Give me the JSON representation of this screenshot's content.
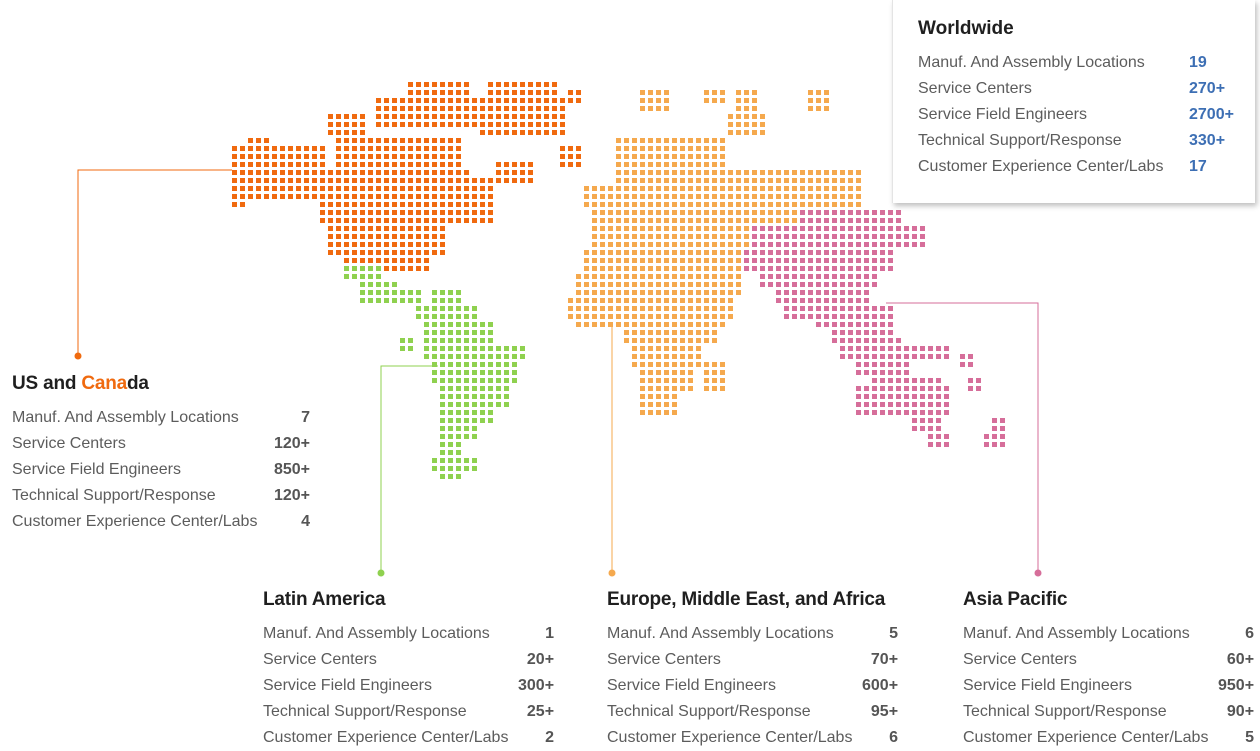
{
  "colors": {
    "us_canada": "#f06a0f",
    "latin_america": "#8fd14f",
    "emea": "#f5a94e",
    "asia_pacific": "#d66e9a",
    "worldwide_values": "#3d6fb4"
  },
  "worldwide": {
    "title": "Worldwide",
    "rows": [
      {
        "label": "Manuf. And Assembly Locations",
        "value": "19"
      },
      {
        "label": "Service Centers",
        "value": "270+"
      },
      {
        "label": "Service Field Engineers",
        "value": "2700+"
      },
      {
        "label": "Technical Support/Response",
        "value": "330+"
      },
      {
        "label": "Customer Experience Center/Labs",
        "value": "17"
      }
    ]
  },
  "us_canada": {
    "title_part1": "US and ",
    "title_highlight": "Cana",
    "title_part2": "da",
    "rows": [
      {
        "label": "Manuf. And Assembly Locations",
        "value": "7"
      },
      {
        "label": "Service Centers",
        "value": "120+"
      },
      {
        "label": "Service Field Engineers",
        "value": "850+"
      },
      {
        "label": "Technical Support/Response",
        "value": "120+"
      },
      {
        "label": "Customer Experience Center/Labs",
        "value": "4"
      }
    ]
  },
  "latin_america": {
    "title": "Latin America",
    "rows": [
      {
        "label": "Manuf. And Assembly Locations",
        "value": "1"
      },
      {
        "label": "Service Centers",
        "value": "20+"
      },
      {
        "label": "Service Field Engineers",
        "value": "300+"
      },
      {
        "label": "Technical Support/Response",
        "value": "25+"
      },
      {
        "label": "Customer Experience Center/Labs",
        "value": "2"
      }
    ]
  },
  "emea": {
    "title": "Europe, Middle East, and Africa",
    "rows": [
      {
        "label": "Manuf. And Assembly Locations",
        "value": "5"
      },
      {
        "label": "Service Centers",
        "value": "70+"
      },
      {
        "label": "Service Field Engineers",
        "value": "600+"
      },
      {
        "label": "Technical Support/Response",
        "value": "95+"
      },
      {
        "label": "Customer Experience Center/Labs",
        "value": "6"
      }
    ]
  },
  "asia_pacific": {
    "title": "Asia Pacific",
    "rows": [
      {
        "label": "Manuf. And Assembly Locations",
        "value": "6"
      },
      {
        "label": "Service Centers",
        "value": "60+"
      },
      {
        "label": "Service Field Engineers",
        "value": "950+"
      },
      {
        "label": "Technical Support/Response",
        "value": "90+"
      },
      {
        "label": "Customer Experience Center/Labs",
        "value": "5"
      }
    ]
  }
}
